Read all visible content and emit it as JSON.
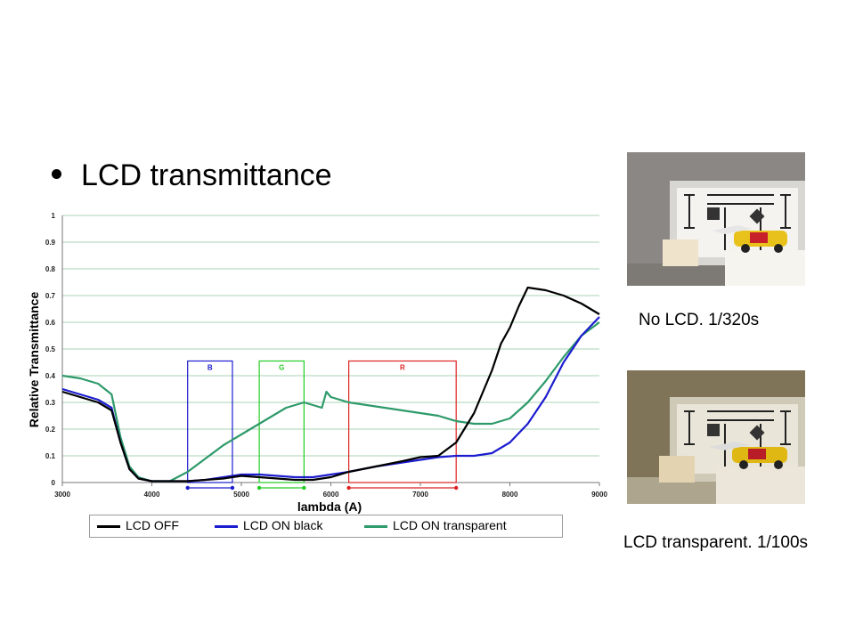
{
  "slide": {
    "bullet": "LCD transmittance"
  },
  "photos": [
    {
      "caption": "No LCD. 1/320s"
    },
    {
      "caption": "LCD transparent. 1/100s"
    }
  ],
  "chart_data": {
    "type": "line",
    "title": "",
    "xlabel": "lambda (A)",
    "ylabel": "Relative Transmittance",
    "xlim": [
      3000,
      9000
    ],
    "ylim": [
      0,
      1
    ],
    "xticks": [
      3000,
      4000,
      5000,
      6000,
      7000,
      8000,
      9000
    ],
    "yticks": [
      0,
      0.1,
      0.2,
      0.3,
      0.4,
      0.5,
      0.6,
      0.7,
      0.8,
      0.9,
      1
    ],
    "grid": true,
    "legend_position": "bottom",
    "series": [
      {
        "name": "LCD   OFF",
        "color": "#000000",
        "x": [
          3000,
          3200,
          3400,
          3550,
          3650,
          3750,
          3850,
          4000,
          4200,
          4400,
          4600,
          4800,
          5000,
          5200,
          5400,
          5600,
          5800,
          6000,
          6200,
          6500,
          6800,
          7000,
          7200,
          7400,
          7600,
          7800,
          7900,
          8000,
          8100,
          8200,
          8400,
          8600,
          8800,
          9000
        ],
        "y": [
          0.34,
          0.32,
          0.3,
          0.27,
          0.15,
          0.05,
          0.015,
          0.005,
          0.005,
          0.005,
          0.01,
          0.015,
          0.025,
          0.02,
          0.015,
          0.01,
          0.01,
          0.02,
          0.04,
          0.06,
          0.08,
          0.095,
          0.1,
          0.15,
          0.26,
          0.42,
          0.52,
          0.58,
          0.66,
          0.73,
          0.72,
          0.7,
          0.67,
          0.63
        ]
      },
      {
        "name": "LCD   ON   black",
        "color": "#1c1ccf",
        "x": [
          3000,
          3200,
          3400,
          3550,
          3650,
          3750,
          3850,
          4000,
          4200,
          4400,
          4600,
          4800,
          5000,
          5200,
          5400,
          5600,
          5800,
          6000,
          6200,
          6500,
          6800,
          7000,
          7200,
          7400,
          7600,
          7800,
          8000,
          8200,
          8400,
          8600,
          8800,
          9000
        ],
        "y": [
          0.35,
          0.33,
          0.31,
          0.28,
          0.15,
          0.05,
          0.015,
          0.005,
          0.005,
          0.005,
          0.01,
          0.02,
          0.03,
          0.03,
          0.025,
          0.02,
          0.02,
          0.03,
          0.04,
          0.06,
          0.075,
          0.085,
          0.095,
          0.1,
          0.1,
          0.11,
          0.15,
          0.22,
          0.32,
          0.45,
          0.55,
          0.62
        ]
      },
      {
        "name": "LCD   ON      transparent",
        "color": "#2e9a6a",
        "x": [
          3000,
          3200,
          3400,
          3550,
          3650,
          3750,
          3850,
          4000,
          4200,
          4400,
          4600,
          4800,
          5000,
          5200,
          5400,
          5500,
          5700,
          5900,
          5950,
          6000,
          6100,
          6200,
          6400,
          6600,
          6800,
          7000,
          7200,
          7400,
          7600,
          7800,
          8000,
          8200,
          8400,
          8600,
          8800,
          9000
        ],
        "y": [
          0.4,
          0.39,
          0.37,
          0.33,
          0.17,
          0.06,
          0.02,
          0.005,
          0.005,
          0.04,
          0.09,
          0.14,
          0.18,
          0.22,
          0.26,
          0.28,
          0.3,
          0.28,
          0.34,
          0.32,
          0.31,
          0.3,
          0.29,
          0.28,
          0.27,
          0.26,
          0.25,
          0.23,
          0.22,
          0.22,
          0.24,
          0.3,
          0.38,
          0.47,
          0.55,
          0.6
        ]
      }
    ],
    "bands": [
      {
        "label": "B",
        "x": [
          4400,
          4900
        ],
        "top": 0.455,
        "color": "#1c1ccf"
      },
      {
        "label": "G",
        "x": [
          5200,
          5700
        ],
        "top": 0.455,
        "color": "#22cc22"
      },
      {
        "label": "R",
        "x": [
          6200,
          7400
        ],
        "top": 0.455,
        "color": "#dd2222"
      }
    ]
  }
}
